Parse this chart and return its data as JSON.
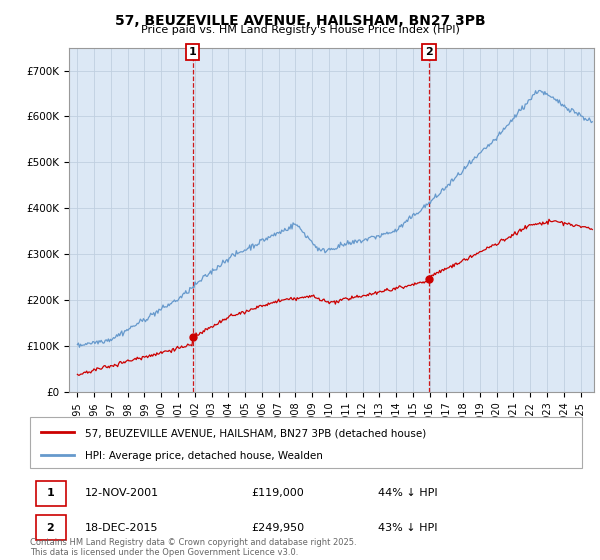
{
  "title": "57, BEUZEVILLE AVENUE, HAILSHAM, BN27 3PB",
  "subtitle": "Price paid vs. HM Land Registry's House Price Index (HPI)",
  "legend_house": "57, BEUZEVILLE AVENUE, HAILSHAM, BN27 3PB (detached house)",
  "legend_hpi": "HPI: Average price, detached house, Wealden",
  "transaction1_date": "12-NOV-2001",
  "transaction1_price": 119000,
  "transaction1_label": "44% ↓ HPI",
  "transaction2_date": "18-DEC-2015",
  "transaction2_price": 249950,
  "transaction2_label": "43% ↓ HPI",
  "transaction1_x": 2001.87,
  "transaction2_x": 2015.96,
  "house_color": "#cc0000",
  "hpi_color": "#6699cc",
  "vline_color": "#cc0000",
  "background_color": "#ffffff",
  "plot_bg_color": "#dce8f5",
  "grid_color": "#c0cfe0",
  "footnote": "Contains HM Land Registry data © Crown copyright and database right 2025.\nThis data is licensed under the Open Government Licence v3.0.",
  "ylim": [
    0,
    750000
  ],
  "xlim": [
    1994.5,
    2025.8
  ]
}
